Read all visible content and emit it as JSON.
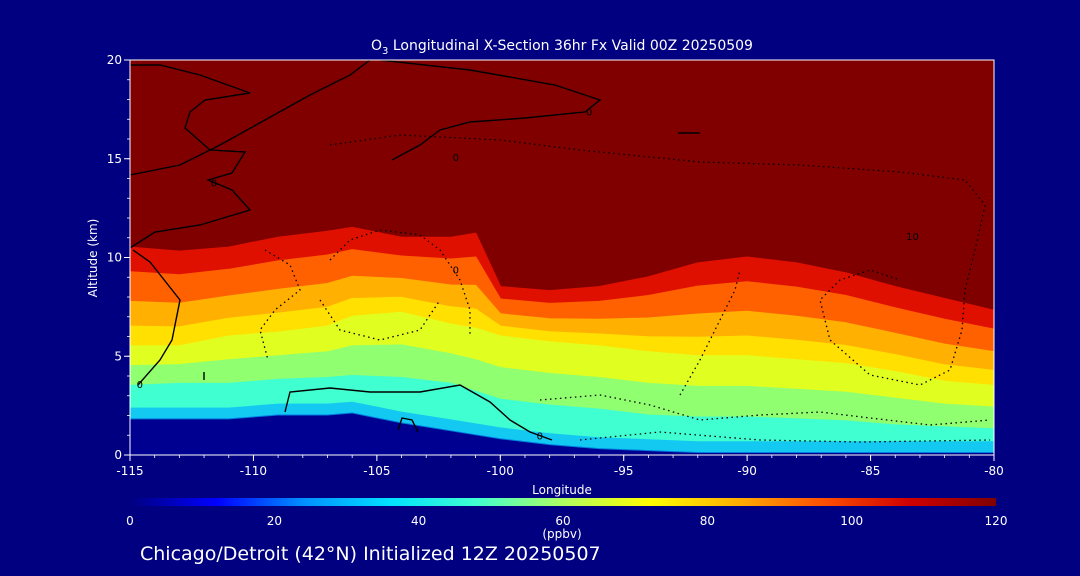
{
  "chart_data": {
    "type": "heatmap",
    "title_prefix": "O",
    "title_subscript": "3",
    "title_suffix": " Longitudinal X-Section 36hr  Fx Valid 00Z 20250509",
    "xlabel": "Longitude",
    "ylabel": "Altitude (km)",
    "xlim": [
      -115,
      -80
    ],
    "ylim": [
      0,
      20
    ],
    "x_ticks": [
      {
        "value": -115,
        "label": "-115"
      },
      {
        "value": -110,
        "label": "-110"
      },
      {
        "value": -105,
        "label": "-105"
      },
      {
        "value": -100,
        "label": "-100"
      },
      {
        "value": -95,
        "label": "-95"
      },
      {
        "value": -90,
        "label": "-90"
      },
      {
        "value": -85,
        "label": "-85"
      },
      {
        "value": -80,
        "label": "-80"
      }
    ],
    "y_ticks": [
      {
        "value": 0,
        "label": "0"
      },
      {
        "value": 5,
        "label": "5"
      },
      {
        "value": 10,
        "label": "10"
      },
      {
        "value": 15,
        "label": "15"
      },
      {
        "value": 20,
        "label": "20"
      }
    ],
    "colorbar": {
      "label": "(ppbv)",
      "range": [
        0,
        120
      ],
      "ticks": [
        {
          "value": 0,
          "label": "0"
        },
        {
          "value": 20,
          "label": "20"
        },
        {
          "value": 40,
          "label": "40"
        },
        {
          "value": 60,
          "label": "60"
        },
        {
          "value": 80,
          "label": "80"
        },
        {
          "value": 100,
          "label": "100"
        },
        {
          "value": 120,
          "label": "120"
        }
      ],
      "colors": [
        "#000080",
        "#0000ff",
        "#0090ff",
        "#00e0ff",
        "#40ffd0",
        "#b0ff60",
        "#ffff00",
        "#ffb000",
        "#ff5000",
        "#d00000",
        "#800000"
      ]
    },
    "ozone_profile": {
      "x": [
        -115,
        -113,
        -111,
        -109,
        -107,
        -106,
        -104,
        -102,
        -101,
        -100,
        -98,
        -96,
        -94,
        -92,
        -90,
        -88,
        -86,
        -84,
        -82,
        -80
      ],
      "tropopause_km": [
        10.5,
        10.3,
        10.5,
        11.0,
        11.3,
        11.5,
        11.0,
        11.0,
        11.2,
        8.5,
        8.3,
        8.5,
        9.0,
        9.7,
        10.0,
        9.7,
        9.2,
        8.5,
        7.9,
        7.3
      ],
      "yellow_top_km": [
        5.5,
        5.5,
        6.0,
        6.2,
        6.5,
        7.0,
        7.2,
        6.6,
        6.4,
        6.0,
        5.7,
        5.5,
        5.2,
        5.0,
        5.0,
        4.8,
        4.6,
        4.2,
        3.7,
        3.5
      ],
      "green_top_km": [
        3.5,
        3.6,
        3.6,
        3.8,
        3.9,
        4.0,
        3.9,
        3.6,
        3.2,
        2.8,
        2.5,
        2.3,
        2.0,
        1.9,
        1.9,
        1.8,
        1.7,
        1.5,
        1.4,
        1.3
      ],
      "surface_km": [
        1.8,
        1.8,
        1.8,
        2.0,
        2.0,
        2.1,
        1.6,
        1.2,
        1.0,
        0.8,
        0.5,
        0.3,
        0.2,
        0.1,
        0.1,
        0.1,
        0.1,
        0.1,
        0.1,
        0.1
      ]
    },
    "contour_labels": [
      {
        "x": -111.6,
        "y": 13.8,
        "label": "0"
      },
      {
        "x": -101.8,
        "y": 15.1,
        "label": "0"
      },
      {
        "x": -96.4,
        "y": 17.4,
        "label": "0"
      },
      {
        "x": -114.6,
        "y": 3.6,
        "label": "0"
      },
      {
        "x": -98.4,
        "y": 1.0,
        "label": "0"
      },
      {
        "x": -101.8,
        "y": 9.4,
        "label": "0"
      },
      {
        "x": -83.3,
        "y": 11.1,
        "label": "10"
      }
    ]
  },
  "footer": {
    "text": "Chicago/Detroit (42°N) Initialized 12Z 20250507"
  }
}
